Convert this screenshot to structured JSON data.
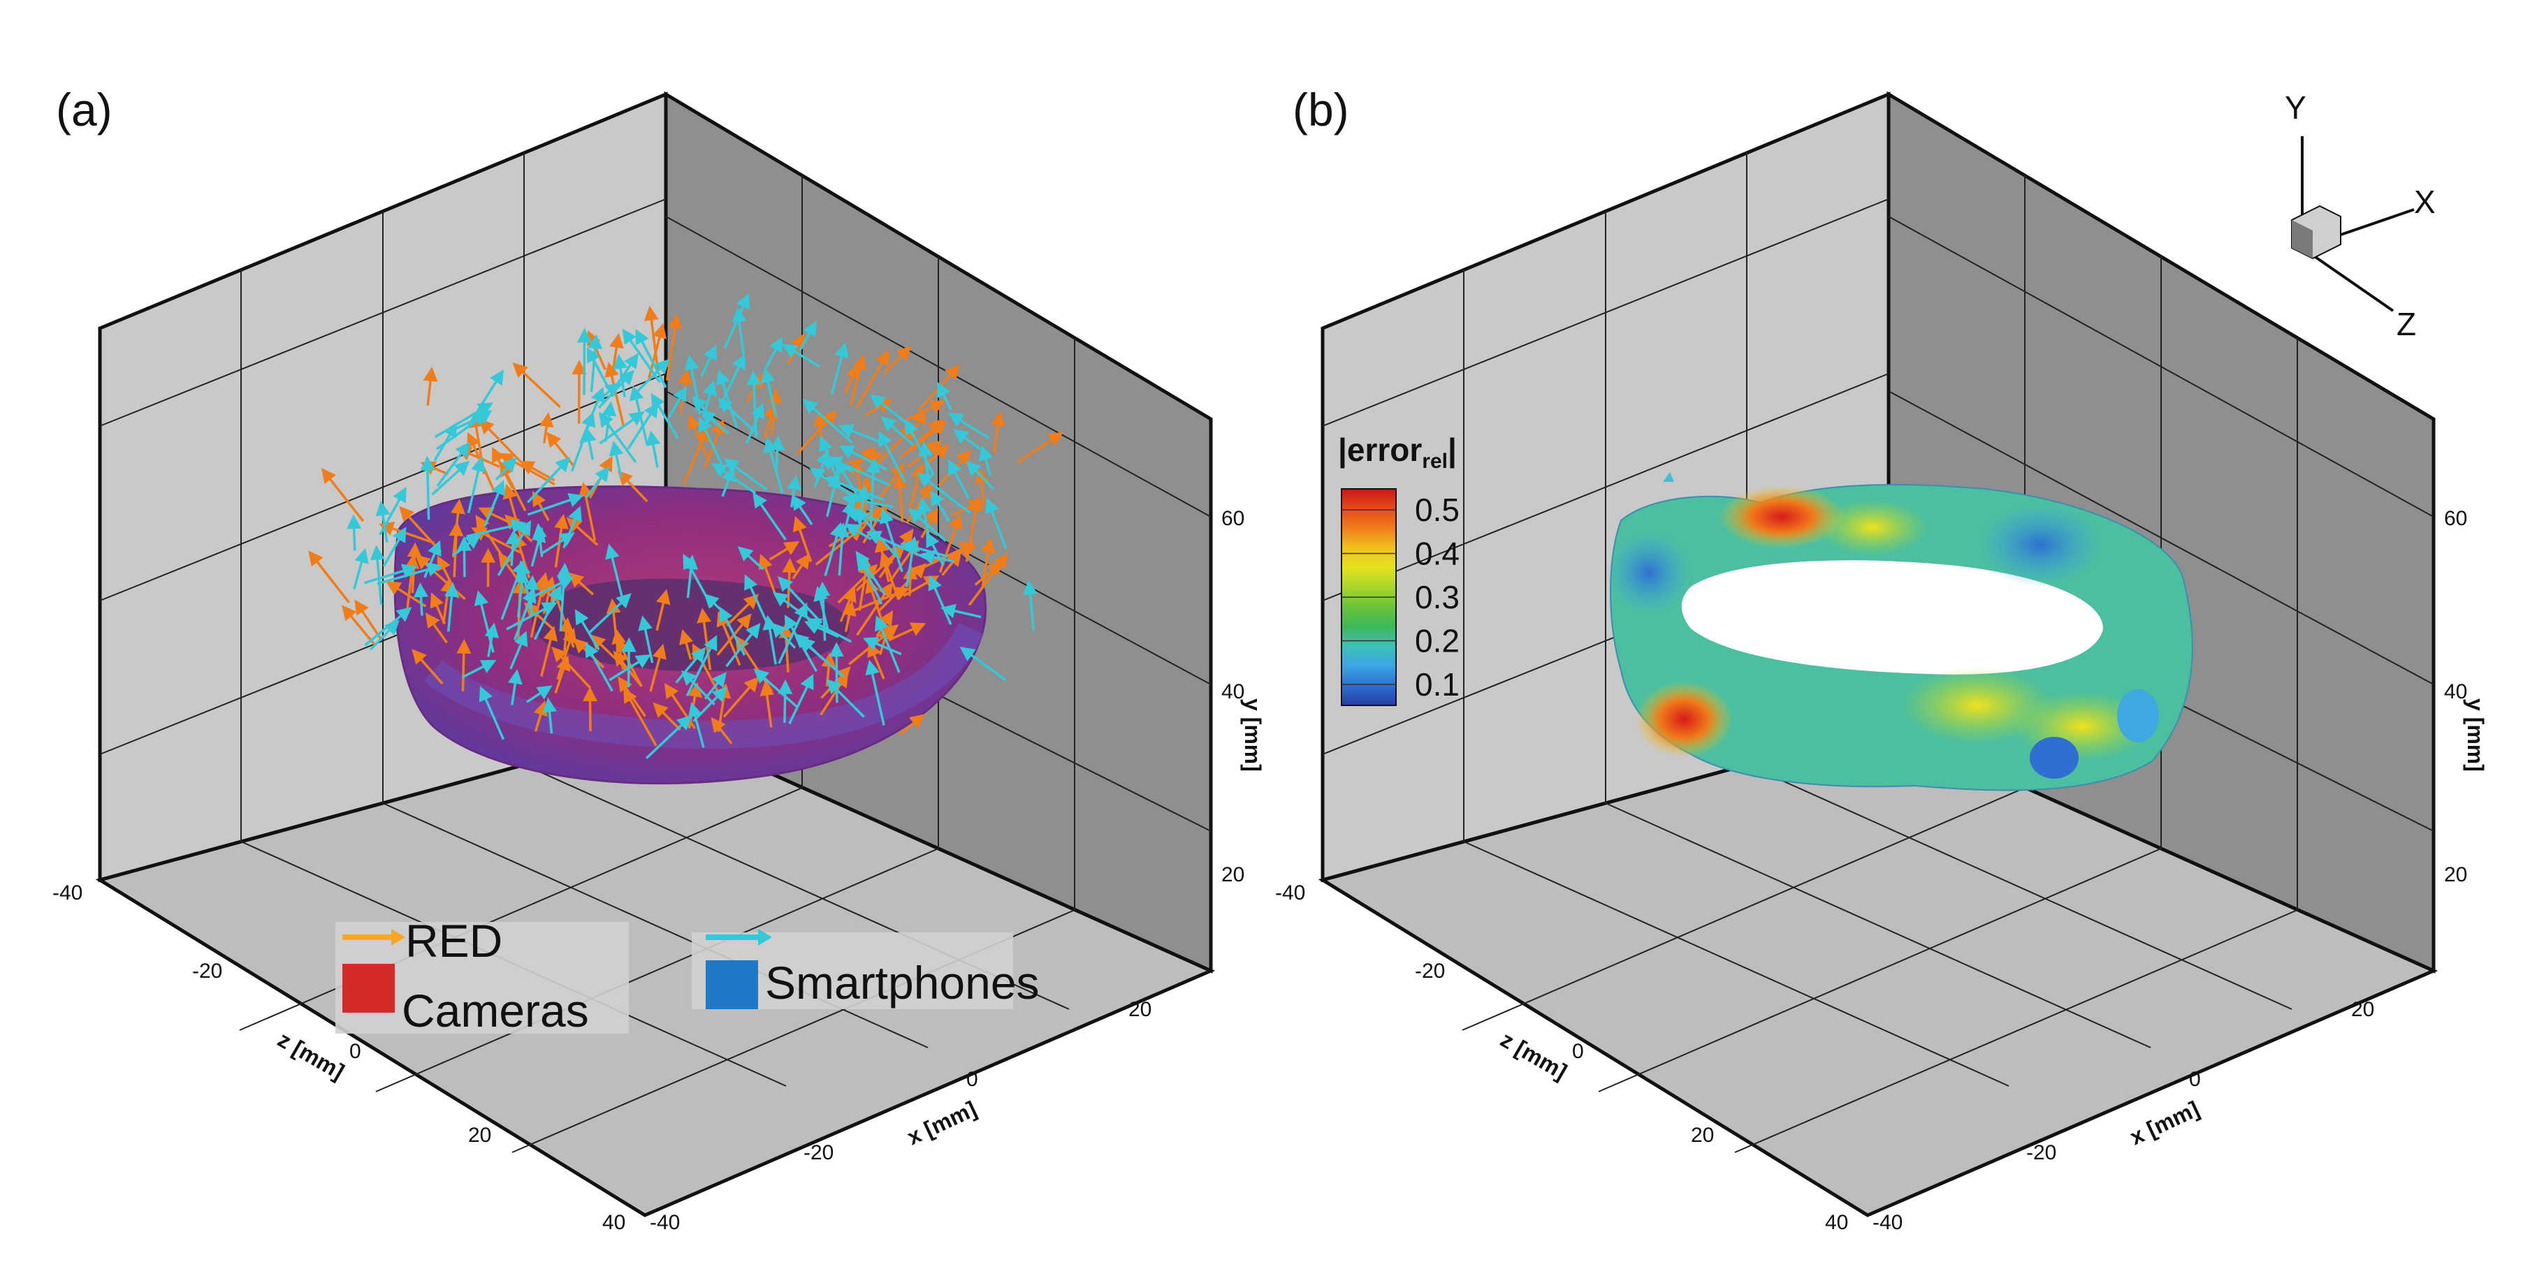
{
  "panels": [
    {
      "label": "(a)",
      "axes": {
        "x_label": "x [mm]",
        "y_label": "y [mm]",
        "z_label": "z [mm]",
        "x_ticks": [
          "-20",
          "0",
          "20"
        ],
        "y_ticks": [
          "20",
          "40",
          "60"
        ],
        "z_ticks": [
          "-20",
          "0",
          "20",
          "40"
        ],
        "corner_tick": "-40",
        "x_start_tick": "-40"
      },
      "legend": [
        {
          "label": "RED",
          "color": "#f5a623",
          "symbol": "arrow-icon"
        },
        {
          "label": "Cameras",
          "color": "#d42a2a",
          "symbol": "red-square-icon"
        },
        {
          "label": "Smartphones",
          "color": "#1f78c8",
          "symbol": "blue-square-icon"
        }
      ]
    },
    {
      "label": "(b)",
      "axes": {
        "x_label": "x [mm]",
        "y_label": "y [mm]",
        "z_label": "z [mm]",
        "x_ticks": [
          "-20",
          "0",
          "20"
        ],
        "y_ticks": [
          "20",
          "40",
          "60"
        ],
        "z_ticks": [
          "-20",
          "0",
          "20",
          "40"
        ],
        "corner_tick": "-40",
        "x_start_tick": "-40"
      },
      "colorbar": {
        "title_main": "|error",
        "title_sub": "rel",
        "title_end": "|",
        "ticks": [
          "0.5",
          "0.4",
          "0.3",
          "0.2",
          "0.1"
        ],
        "colors": [
          "#c81818",
          "#e64a1a",
          "#f07d1a",
          "#f2c21d",
          "#e2e21e",
          "#a8d62a",
          "#6cc23a",
          "#3cb85a",
          "#3ec0b8",
          "#3aa6e6",
          "#2f6fd0",
          "#243ea8"
        ]
      },
      "orientation": {
        "x": "X",
        "y": "Y",
        "z": "Z"
      }
    }
  ],
  "chart_data": [
    {
      "type": "scatter",
      "title": "(a)",
      "description_series": [
        "RED Cameras",
        "Smartphones"
      ],
      "xlabel": "x [mm]",
      "ylabel": "y [mm]",
      "zlabel": "z [mm]",
      "xlim": [
        -40,
        40
      ],
      "ylim": [
        10,
        75
      ],
      "zlim": [
        -40,
        40
      ],
      "series": [
        {
          "name": "RED Cameras",
          "color": "#f07d1a"
        },
        {
          "name": "Smartphones",
          "color": "#35c8d8"
        }
      ]
    },
    {
      "type": "heatmap",
      "title": "(b)",
      "xlabel": "x [mm]",
      "ylabel": "y [mm]",
      "zlabel": "z [mm]",
      "xlim": [
        -40,
        40
      ],
      "ylim": [
        10,
        75
      ],
      "zlim": [
        -40,
        40
      ],
      "colorbar_range": [
        0.05,
        0.55
      ],
      "colorbar_ticks": [
        0.1,
        0.2,
        0.3,
        0.4,
        0.5
      ]
    }
  ]
}
